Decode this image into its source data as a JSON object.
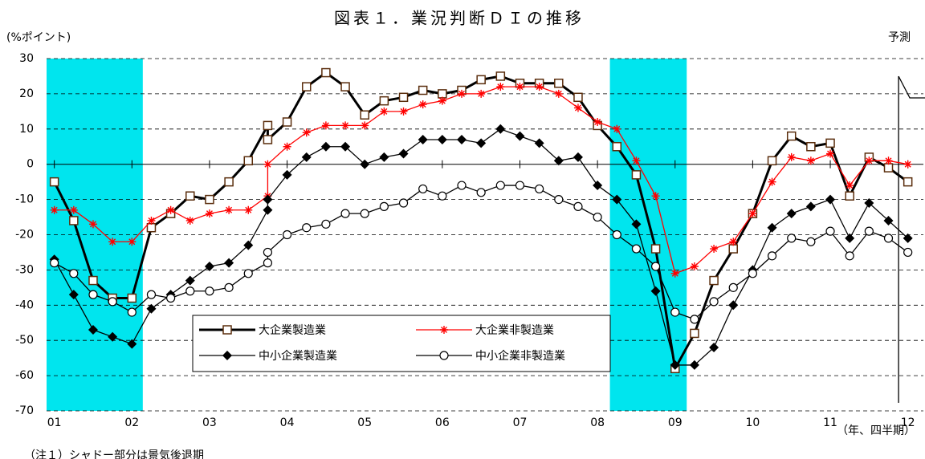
{
  "chart_data": {
    "type": "line",
    "title": "図表１．業況判断ＤＩの推移",
    "y_label": "(%ポイント)",
    "x_label": "（年、四半期）",
    "note": "（注１）シャドー部分は景気後退期",
    "forecast_label": "予測",
    "forecast_x": 2011.88,
    "bands": [
      {
        "from": 2000.9,
        "to": 2002.14,
        "color": "#00e5ee"
      },
      {
        "from": 2008.16,
        "to": 2009.15,
        "color": "#00e5ee"
      }
    ],
    "x": [
      2001,
      2001.25,
      2001.5,
      2001.75,
      2002,
      2002.25,
      2002.5,
      2002.75,
      2003,
      2003.25,
      2003.5,
      2003.75,
      2003.75,
      2004,
      2004.25,
      2004.5,
      2004.75,
      2005,
      2005.25,
      2005.5,
      2005.75,
      2006,
      2006.25,
      2006.5,
      2006.75,
      2007,
      2007.25,
      2007.5,
      2007.75,
      2008,
      2008.25,
      2008.5,
      2008.75,
      2009,
      2009.25,
      2009.5,
      2009.75,
      2010,
      2010.25,
      2010.5,
      2010.75,
      2011,
      2011.25,
      2011.5,
      2011.75,
      2012
    ],
    "xlim": [
      2000.9,
      2012.2
    ],
    "xticks": [
      {
        "value": 2001,
        "label": "01"
      },
      {
        "value": 2002,
        "label": "02"
      },
      {
        "value": 2003,
        "label": "03"
      },
      {
        "value": 2004,
        "label": "04"
      },
      {
        "value": 2005,
        "label": "05"
      },
      {
        "value": 2006,
        "label": "06"
      },
      {
        "value": 2007,
        "label": "07"
      },
      {
        "value": 2008,
        "label": "08"
      },
      {
        "value": 2009,
        "label": "09"
      },
      {
        "value": 2010,
        "label": "10"
      },
      {
        "value": 2011,
        "label": "11"
      },
      {
        "value": 2012,
        "label": "12"
      }
    ],
    "ylim": [
      -70,
      30
    ],
    "yticks": [
      -70,
      -60,
      -50,
      -40,
      -30,
      -20,
      -10,
      0,
      10,
      20,
      30
    ],
    "grid": true,
    "legend": "lower center",
    "series": [
      {
        "name": "大企業製造業",
        "color": "#000000",
        "marker": "square",
        "width": 3,
        "values": [
          -5,
          -16,
          -33,
          -38,
          -38,
          -18,
          -14,
          -9,
          -10,
          -5,
          1,
          11,
          7,
          12,
          22,
          26,
          22,
          14,
          18,
          19,
          21,
          20,
          21,
          24,
          25,
          23,
          23,
          23,
          19,
          11,
          5,
          -3,
          -24,
          -58,
          -48,
          -33,
          -24,
          -14,
          1,
          8,
          5,
          6,
          -9,
          2,
          -1,
          -5
        ]
      },
      {
        "name": "大企業非製造業",
        "color": "#ff0000",
        "marker": "star",
        "width": 1.3,
        "values": [
          -13,
          -13,
          -17,
          -22,
          -22,
          -16,
          -13,
          -16,
          -14,
          -13,
          -13,
          -9,
          0,
          5,
          9,
          11,
          11,
          11,
          15,
          15,
          17,
          18,
          20,
          20,
          22,
          22,
          22,
          20,
          16,
          12,
          10,
          1,
          -9,
          -31,
          -29,
          -24,
          -22,
          -14,
          -5,
          2,
          1,
          3,
          -6,
          1,
          1,
          0
        ]
      },
      {
        "name": "中小企業製造業",
        "color": "#000000",
        "marker": "diamond",
        "width": 1.3,
        "values": [
          -27,
          -37,
          -47,
          -49,
          -51,
          -41,
          -37,
          -33,
          -29,
          -28,
          -23,
          -13,
          -10,
          -3,
          2,
          5,
          5,
          0,
          2,
          3,
          7,
          7,
          7,
          6,
          10,
          8,
          6,
          1,
          2,
          -6,
          -10,
          -17,
          -36,
          -57,
          -57,
          -52,
          -40,
          -30,
          -18,
          -14,
          -12,
          -10,
          -21,
          -11,
          -16,
          -21
        ]
      },
      {
        "name": "中小企業非製造業",
        "color": "#000000",
        "marker": "circle",
        "width": 1.3,
        "values": [
          -28,
          -31,
          -37,
          -39,
          -42,
          -37,
          -38,
          -36,
          -36,
          -35,
          -31,
          -28,
          -25,
          -20,
          -18,
          -17,
          -14,
          -14,
          -12,
          -11,
          -7,
          -9,
          -6,
          -8,
          -6,
          -6,
          -7,
          -10,
          -12,
          -15,
          -20,
          -24,
          -29,
          -42,
          -44,
          -39,
          -35,
          -31,
          -26,
          -21,
          -22,
          -19,
          -26,
          -19,
          -21,
          -25
        ]
      }
    ]
  }
}
